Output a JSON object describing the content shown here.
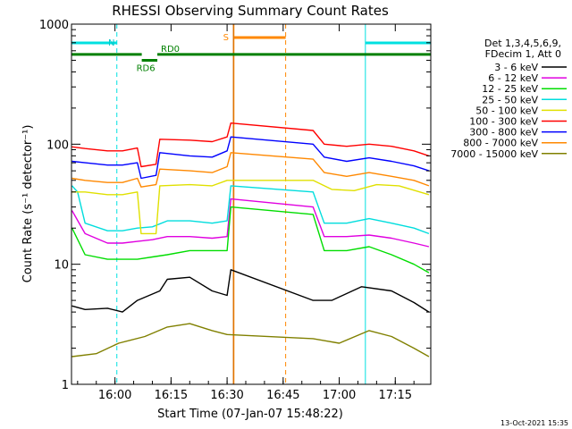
{
  "chart_data": {
    "type": "line",
    "title": "RHESSI Observing Summary Count Rates",
    "xlabel": "Start Time (07-Jan-07 15:48:22)",
    "ylabel": "Count Rate (s⁻¹ detector⁻¹)",
    "y_scale": "log",
    "ylim": [
      1,
      1000
    ],
    "xlim": [
      "15:48:22",
      "17:24:30"
    ],
    "x_ticks": [
      "16:00",
      "16:15",
      "16:30",
      "16:45",
      "17:00",
      "17:15"
    ],
    "y_ticks": [
      "1",
      "10",
      "100",
      "1000"
    ],
    "legend_header": [
      "Det 1,3,4,5,6,9,",
      "FDecim 1, Att 0"
    ],
    "legend_position": "right",
    "series": [
      {
        "name": "3 - 6 keV",
        "color": "#000000",
        "points": [
          [
            "15:48:30",
            4.5
          ],
          [
            "15:52",
            4.2
          ],
          [
            "15:58",
            4.3
          ],
          [
            "16:02",
            4.0
          ],
          [
            "16:06",
            5.0
          ],
          [
            "16:12",
            6.0
          ],
          [
            "16:14",
            7.5
          ],
          [
            "16:20",
            7.8
          ],
          [
            "16:26",
            6.0
          ],
          [
            "16:30",
            5.5
          ],
          [
            "16:31",
            9.0
          ],
          [
            "16:53",
            5.0
          ],
          [
            "16:58",
            5.0
          ],
          [
            "17:06",
            6.5
          ],
          [
            "17:14",
            6.0
          ],
          [
            "17:20",
            4.8
          ],
          [
            "17:24",
            4.0
          ]
        ]
      },
      {
        "name": "6 - 12 keV",
        "color": "#e000e0",
        "points": [
          [
            "15:48:30",
            28
          ],
          [
            "15:52",
            18
          ],
          [
            "15:58",
            15
          ],
          [
            "16:02",
            15
          ],
          [
            "16:06",
            15.5
          ],
          [
            "16:10",
            16
          ],
          [
            "16:14",
            17
          ],
          [
            "16:20",
            17
          ],
          [
            "16:26",
            16.5
          ],
          [
            "16:30",
            17
          ],
          [
            "16:31",
            35
          ],
          [
            "16:53",
            30
          ],
          [
            "16:56",
            17
          ],
          [
            "17:02",
            17
          ],
          [
            "17:08",
            17.5
          ],
          [
            "17:14",
            16.5
          ],
          [
            "17:20",
            15
          ],
          [
            "17:24",
            14
          ]
        ]
      },
      {
        "name": "12 - 25 keV",
        "color": "#00dd00",
        "points": [
          [
            "15:48:30",
            20
          ],
          [
            "15:52",
            12
          ],
          [
            "15:58",
            11
          ],
          [
            "16:02",
            11
          ],
          [
            "16:06",
            11
          ],
          [
            "16:10",
            11.5
          ],
          [
            "16:14",
            12
          ],
          [
            "16:20",
            13
          ],
          [
            "16:26",
            13
          ],
          [
            "16:30",
            13
          ],
          [
            "16:31",
            30
          ],
          [
            "16:53",
            26
          ],
          [
            "16:56",
            13
          ],
          [
            "17:02",
            13
          ],
          [
            "17:08",
            14
          ],
          [
            "17:14",
            12
          ],
          [
            "17:20",
            10
          ],
          [
            "17:24",
            8.5
          ]
        ]
      },
      {
        "name": "25 - 50 keV",
        "color": "#00dddd",
        "points": [
          [
            "15:48:30",
            45
          ],
          [
            "15:50",
            40
          ],
          [
            "15:52",
            22
          ],
          [
            "15:58",
            19
          ],
          [
            "16:02",
            19
          ],
          [
            "16:06",
            20
          ],
          [
            "16:10",
            20.5
          ],
          [
            "16:14",
            23
          ],
          [
            "16:20",
            23
          ],
          [
            "16:26",
            22
          ],
          [
            "16:30",
            23
          ],
          [
            "16:31",
            45
          ],
          [
            "16:53",
            40
          ],
          [
            "16:56",
            22
          ],
          [
            "17:02",
            22
          ],
          [
            "17:08",
            24
          ],
          [
            "17:14",
            22
          ],
          [
            "17:20",
            20
          ],
          [
            "17:24",
            18
          ]
        ]
      },
      {
        "name": "50 - 100 keV",
        "color": "#e0e000",
        "points": [
          [
            "15:48:30",
            40
          ],
          [
            "15:52",
            40
          ],
          [
            "15:58",
            38
          ],
          [
            "16:02",
            38
          ],
          [
            "16:06",
            40
          ],
          [
            "16:07",
            18
          ],
          [
            "16:11",
            18
          ],
          [
            "16:12",
            45
          ],
          [
            "16:20",
            46
          ],
          [
            "16:26",
            45
          ],
          [
            "16:30",
            50
          ],
          [
            "16:53",
            50
          ],
          [
            "16:58",
            42
          ],
          [
            "17:04",
            41
          ],
          [
            "17:10",
            46
          ],
          [
            "17:16",
            45
          ],
          [
            "17:24",
            38
          ]
        ]
      },
      {
        "name": "100 - 300 keV",
        "color": "#ff0000",
        "points": [
          [
            "15:48:30",
            95
          ],
          [
            "15:52",
            92
          ],
          [
            "15:58",
            88
          ],
          [
            "16:02",
            88
          ],
          [
            "16:06",
            93
          ],
          [
            "16:07",
            65
          ],
          [
            "16:11",
            68
          ],
          [
            "16:12",
            110
          ],
          [
            "16:20",
            108
          ],
          [
            "16:26",
            105
          ],
          [
            "16:30",
            115
          ],
          [
            "16:31",
            150
          ],
          [
            "16:53",
            130
          ],
          [
            "16:56",
            100
          ],
          [
            "17:02",
            96
          ],
          [
            "17:08",
            100
          ],
          [
            "17:14",
            96
          ],
          [
            "17:20",
            88
          ],
          [
            "17:24",
            80
          ]
        ]
      },
      {
        "name": "300 - 800 keV",
        "color": "#0000ff",
        "points": [
          [
            "15:48:30",
            72
          ],
          [
            "15:52",
            70
          ],
          [
            "15:58",
            67
          ],
          [
            "16:02",
            67
          ],
          [
            "16:06",
            70
          ],
          [
            "16:07",
            52
          ],
          [
            "16:11",
            55
          ],
          [
            "16:12",
            85
          ],
          [
            "16:20",
            80
          ],
          [
            "16:26",
            78
          ],
          [
            "16:30",
            88
          ],
          [
            "16:31",
            115
          ],
          [
            "16:53",
            100
          ],
          [
            "16:56",
            78
          ],
          [
            "17:02",
            72
          ],
          [
            "17:08",
            77
          ],
          [
            "17:14",
            72
          ],
          [
            "17:20",
            66
          ],
          [
            "17:24",
            60
          ]
        ]
      },
      {
        "name": "800 - 7000 keV",
        "color": "#ff8800",
        "points": [
          [
            "15:48:30",
            52
          ],
          [
            "15:52",
            50
          ],
          [
            "15:58",
            48
          ],
          [
            "16:02",
            48
          ],
          [
            "16:06",
            52
          ],
          [
            "16:07",
            44
          ],
          [
            "16:11",
            46
          ],
          [
            "16:12",
            62
          ],
          [
            "16:20",
            60
          ],
          [
            "16:26",
            58
          ],
          [
            "16:30",
            65
          ],
          [
            "16:31",
            85
          ],
          [
            "16:53",
            75
          ],
          [
            "16:56",
            58
          ],
          [
            "17:02",
            54
          ],
          [
            "17:08",
            58
          ],
          [
            "17:14",
            54
          ],
          [
            "17:20",
            50
          ],
          [
            "17:24",
            45
          ]
        ]
      },
      {
        "name": "7000 - 15000 keV",
        "color": "#808000",
        "points": [
          [
            "15:48:30",
            1.7
          ],
          [
            "15:55",
            1.8
          ],
          [
            "16:01",
            2.2
          ],
          [
            "16:08",
            2.5
          ],
          [
            "16:14",
            3.0
          ],
          [
            "16:20",
            3.2
          ],
          [
            "16:26",
            2.8
          ],
          [
            "16:30",
            2.6
          ],
          [
            "16:53",
            2.4
          ],
          [
            "17:00",
            2.2
          ],
          [
            "17:08",
            2.8
          ],
          [
            "17:14",
            2.5
          ],
          [
            "17:20",
            2.0
          ],
          [
            "17:24",
            1.7
          ]
        ]
      }
    ],
    "annotations": {
      "night_intervals": [
        [
          "15:48:22",
          "16:00:30"
        ],
        [
          "17:07:00",
          "17:24:30"
        ]
      ],
      "night_label": "N",
      "saa_intervals": [
        [
          "16:31:50",
          "16:45:40"
        ]
      ],
      "saa_label": "S",
      "decimation_segments": [
        {
          "label": "RD6",
          "start": "16:07:10",
          "end": "16:11:20",
          "level": 500
        },
        {
          "label": "RD0",
          "start": "16:11:20",
          "end": "17:24:30",
          "level": 560
        },
        {
          "label": "",
          "start": "15:48:22",
          "end": "16:07:10",
          "level": 560
        }
      ],
      "attenuator_marker": "16:31:40"
    },
    "timestamp": "13-Oct-2021 15:35"
  }
}
